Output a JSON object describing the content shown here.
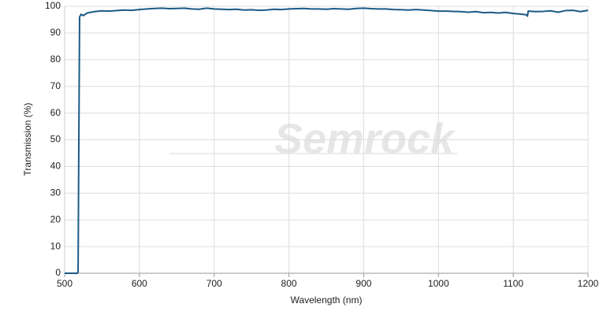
{
  "chart_data": {
    "type": "line",
    "watermark": "Semrock",
    "x_label": "Wavelength (nm)",
    "y_label": "Transmission (%)",
    "x": [
      500,
      517,
      518,
      519,
      520,
      522,
      525,
      530,
      540,
      550,
      560,
      570,
      580,
      590,
      600,
      610,
      620,
      630,
      640,
      650,
      660,
      670,
      680,
      690,
      700,
      710,
      720,
      730,
      740,
      750,
      760,
      770,
      780,
      790,
      800,
      810,
      820,
      830,
      840,
      850,
      860,
      870,
      880,
      890,
      900,
      910,
      920,
      930,
      940,
      950,
      960,
      970,
      980,
      990,
      1000,
      1010,
      1020,
      1030,
      1040,
      1050,
      1060,
      1070,
      1080,
      1090,
      1100,
      1110,
      1118,
      1119,
      1120,
      1130,
      1140,
      1150,
      1160,
      1170,
      1180,
      1190,
      1200
    ],
    "values": [
      0,
      0,
      0.5,
      50,
      96,
      97,
      96.5,
      97.5,
      98,
      98.3,
      98.2,
      98.4,
      98.6,
      98.5,
      98.8,
      99,
      99.2,
      99.3,
      99.1,
      99.2,
      99.3,
      99,
      98.9,
      99.3,
      99,
      98.9,
      98.8,
      98.9,
      98.6,
      98.7,
      98.5,
      98.6,
      98.9,
      98.8,
      99,
      99.1,
      99.2,
      99,
      99,
      98.9,
      99.1,
      99,
      98.9,
      99.2,
      99.3,
      99.1,
      99,
      99,
      98.8,
      98.7,
      98.6,
      98.8,
      98.6,
      98.4,
      98.2,
      98.2,
      98.1,
      98,
      97.8,
      98,
      97.6,
      97.7,
      97.5,
      97.7,
      97.3,
      97.1,
      96.8,
      96.3,
      98.2,
      98,
      98.1,
      98.3,
      97.8,
      98.4,
      98.5,
      98,
      98.5
    ],
    "color": "#1b5a86",
    "xlim": [
      500,
      1200
    ],
    "xticks": [
      500,
      600,
      700,
      800,
      900,
      1000,
      1100,
      1200
    ],
    "ylim": [
      0,
      100
    ],
    "yticks": [
      0,
      10,
      20,
      30,
      40,
      50,
      60,
      70,
      80,
      90,
      100
    ],
    "grid": true
  }
}
